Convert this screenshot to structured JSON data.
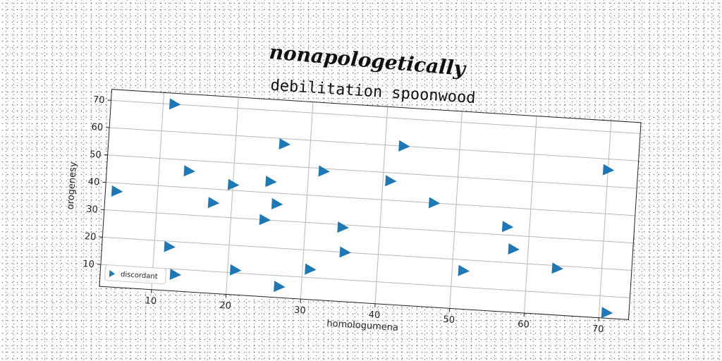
{
  "figure": {
    "suptitle": "nonapologetically"
  },
  "chart_data": {
    "type": "scatter",
    "title": "debilitation spoonwood",
    "xlabel": "homologumena",
    "ylabel": "orogenesy",
    "xlim": [
      3,
      74
    ],
    "ylim": [
      2,
      74
    ],
    "xticks": [
      10,
      20,
      30,
      40,
      50,
      60,
      70
    ],
    "yticks": [
      10,
      20,
      30,
      40,
      50,
      60,
      70
    ],
    "grid": true,
    "legend_position": "lower-left",
    "series": [
      {
        "name": "discordant",
        "marker": "triangle-right",
        "color": "#1f77b4",
        "points": [
          [
            11.5,
            70
          ],
          [
            4.5,
            37
          ],
          [
            14,
            46
          ],
          [
            17.5,
            35
          ],
          [
            20,
            42
          ],
          [
            12,
            18
          ],
          [
            13,
            8
          ],
          [
            21,
            11
          ],
          [
            25,
            44
          ],
          [
            26.5,
            58
          ],
          [
            26,
            36
          ],
          [
            24.5,
            30
          ],
          [
            27,
            6
          ],
          [
            31,
            13
          ],
          [
            32,
            49
          ],
          [
            35,
            29
          ],
          [
            35.5,
            20
          ],
          [
            41,
            47
          ],
          [
            42.5,
            60
          ],
          [
            47,
            40
          ],
          [
            51.5,
            16
          ],
          [
            57,
            33
          ],
          [
            58,
            25
          ],
          [
            64,
            19
          ],
          [
            70,
            56
          ],
          [
            71,
            4
          ]
        ]
      }
    ]
  }
}
